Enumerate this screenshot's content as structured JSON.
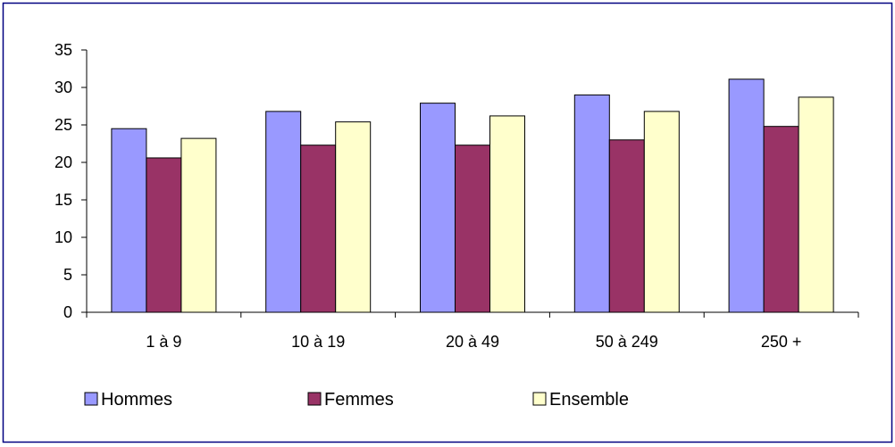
{
  "chart_data": {
    "type": "bar",
    "categories": [
      "1 à 9",
      "10 à 19",
      "20 à 49",
      "50 à 249",
      "250 +"
    ],
    "series": [
      {
        "name": "Hommes",
        "color": "#9999FF",
        "values": [
          24.5,
          26.8,
          27.9,
          29.0,
          31.1
        ]
      },
      {
        "name": "Femmes",
        "color": "#993366",
        "values": [
          20.6,
          22.3,
          22.3,
          23.0,
          24.8
        ]
      },
      {
        "name": "Ensemble",
        "color": "#FFFFCC",
        "values": [
          23.2,
          25.4,
          26.2,
          26.8,
          28.7
        ]
      }
    ],
    "title": "",
    "xlabel": "",
    "ylabel": "",
    "ylim": [
      0,
      35
    ],
    "yticks": [
      0,
      5,
      10,
      15,
      20,
      25,
      30,
      35
    ],
    "grid": false,
    "legend_position": "bottom"
  }
}
